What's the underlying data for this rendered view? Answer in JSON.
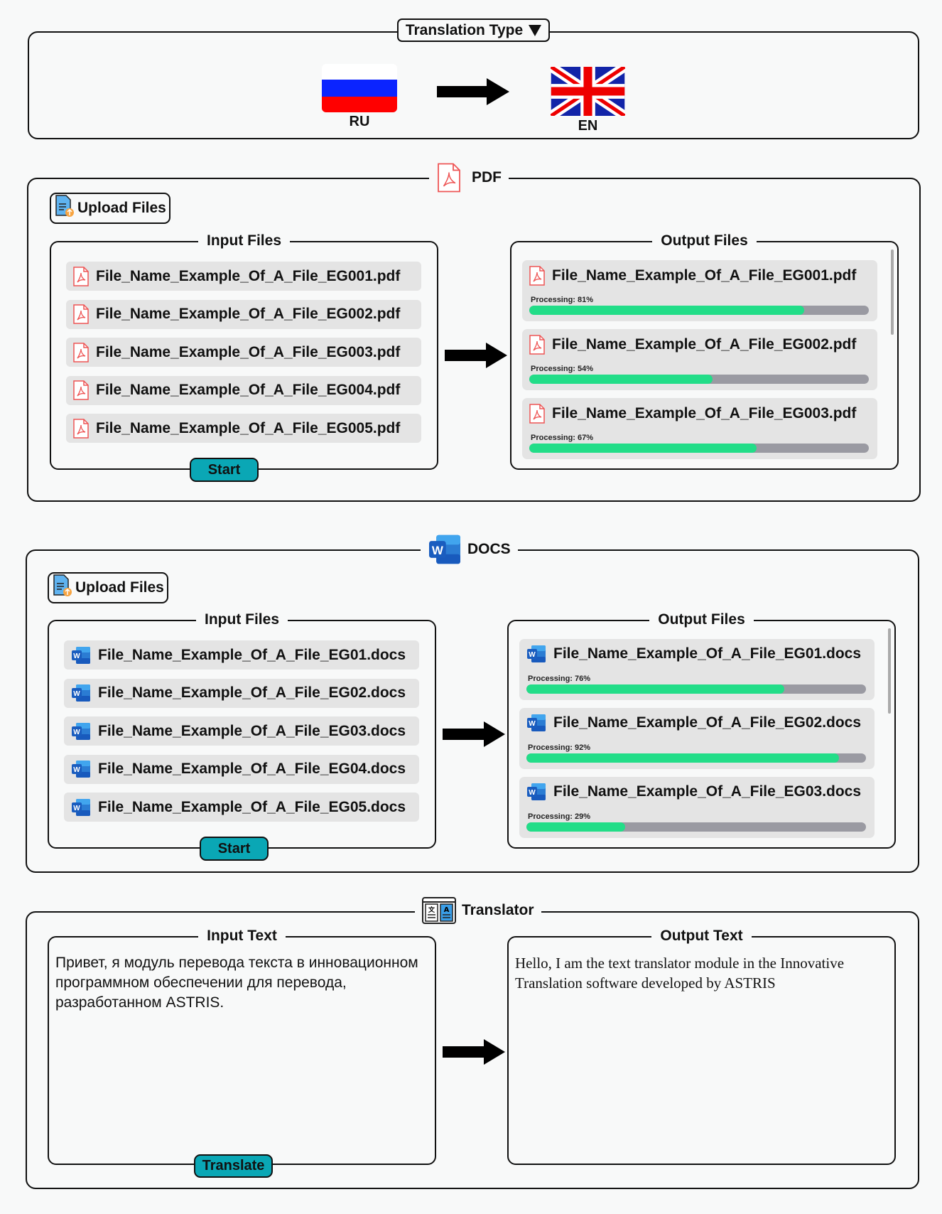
{
  "translation_type": {
    "label": "Translation Type",
    "source": {
      "code": "RU",
      "flag": "russia-flag"
    },
    "target": {
      "code": "EN",
      "flag": "uk-flag"
    }
  },
  "colors": {
    "accent": "#0aa7b5",
    "progress_fill": "#22dd88",
    "progress_track": "#9a9aa2",
    "item_bg": "#e4e4e4"
  },
  "pdf": {
    "title": "PDF",
    "upload_label": "Upload Files",
    "input_title": "Input Files",
    "output_title": "Output Files",
    "start_label": "Start",
    "input_files": [
      "File_Name_Example_Of_A_File_EG001.pdf",
      "File_Name_Example_Of_A_File_EG002.pdf",
      "File_Name_Example_Of_A_File_EG003.pdf",
      "File_Name_Example_Of_A_File_EG004.pdf",
      "File_Name_Example_Of_A_File_EG005.pdf"
    ],
    "output_files": [
      {
        "name": "File_Name_Example_Of_A_File_EG001.pdf",
        "status": "Processing: 81%",
        "progress": 81
      },
      {
        "name": "File_Name_Example_Of_A_File_EG002.pdf",
        "status": "Processing: 54%",
        "progress": 54
      },
      {
        "name": "File_Name_Example_Of_A_File_EG003.pdf",
        "status": "Processing: 67%",
        "progress": 67
      }
    ]
  },
  "docs": {
    "title": "DOCS",
    "upload_label": "Upload Files",
    "input_title": "Input Files",
    "output_title": "Output Files",
    "start_label": "Start",
    "input_files": [
      "File_Name_Example_Of_A_File_EG01.docs",
      "File_Name_Example_Of_A_File_EG02.docs",
      "File_Name_Example_Of_A_File_EG03.docs",
      "File_Name_Example_Of_A_File_EG04.docs",
      "File_Name_Example_Of_A_File_EG05.docs"
    ],
    "output_files": [
      {
        "name": "File_Name_Example_Of_A_File_EG01.docs",
        "status": "Processing: 76%",
        "progress": 76
      },
      {
        "name": "File_Name_Example_Of_A_File_EG02.docs",
        "status": "Processing: 92%",
        "progress": 92
      },
      {
        "name": "File_Name_Example_Of_A_File_EG03.docs",
        "status": "Processing: 29%",
        "progress": 29
      }
    ]
  },
  "translator": {
    "title": "Translator",
    "input_title": "Input Text",
    "output_title": "Output Text",
    "translate_label": "Translate",
    "input_text": "Привет, я модуль перевода текста в инновационном программном обеспечении для перевода, разработанном ASTRIS.",
    "output_text": "Hello, I am the text translator module in the Innovative Translation software developed by ASTRIS"
  }
}
